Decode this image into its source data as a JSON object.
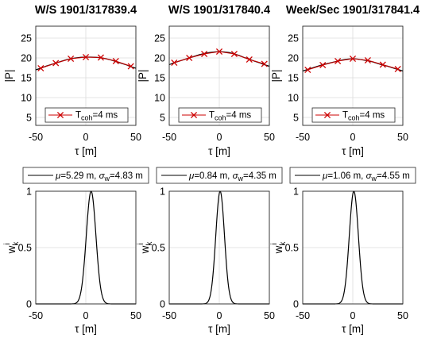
{
  "chart_data": [
    {
      "type": "line",
      "title": "W/S 1901/317839.4",
      "xlabel": "τ [m]",
      "ylabel": "|P|",
      "xlim": [
        -50,
        50
      ],
      "ylim": [
        3,
        28
      ],
      "xticks": [
        "-50",
        "0",
        "50"
      ],
      "yticks": [
        "5",
        "10",
        "15",
        "20",
        "25"
      ],
      "grid": true,
      "legend_position": "bottom-center",
      "series": [
        {
          "name_main": "T",
          "name_sub": "coh",
          "name_rest": "=4 ms",
          "color": "#cc0000",
          "marker": "x",
          "x": [
            -45,
            -30,
            -15,
            0,
            15,
            30,
            45
          ],
          "y": [
            17.4,
            18.7,
            19.8,
            20.2,
            20.1,
            19.2,
            17.9
          ]
        }
      ],
      "fit": {
        "x": [
          -50,
          -45,
          -40,
          -35,
          -30,
          -25,
          -20,
          -15,
          -10,
          -5,
          0,
          5,
          10,
          15,
          20,
          25,
          30,
          35,
          40,
          45,
          50
        ],
        "y": [
          17.0,
          17.4,
          17.9,
          18.3,
          18.7,
          19.1,
          19.5,
          19.8,
          20.0,
          20.15,
          20.2,
          20.2,
          20.15,
          20.05,
          19.8,
          19.5,
          19.1,
          18.7,
          18.3,
          17.8,
          17.4
        ]
      }
    },
    {
      "type": "line",
      "title": "W/S 1901/317840.4",
      "xlabel": "τ [m]",
      "ylabel": "|P|",
      "xlim": [
        -50,
        50
      ],
      "ylim": [
        3,
        28
      ],
      "xticks": [
        "-50",
        "0",
        "50"
      ],
      "yticks": [
        "5",
        "10",
        "15",
        "20",
        "25"
      ],
      "grid": true,
      "legend_position": "bottom-center",
      "series": [
        {
          "name_main": "T",
          "name_sub": "coh",
          "name_rest": "=4 ms",
          "color": "#cc0000",
          "marker": "x",
          "x": [
            -45,
            -30,
            -15,
            0,
            15,
            30,
            45
          ],
          "y": [
            18.8,
            20.0,
            21.0,
            21.6,
            21.0,
            19.6,
            18.5
          ]
        }
      ],
      "fit": {
        "x": [
          -50,
          -45,
          -40,
          -35,
          -30,
          -25,
          -20,
          -15,
          -10,
          -5,
          0,
          5,
          10,
          15,
          20,
          25,
          30,
          35,
          40,
          45,
          50
        ],
        "y": [
          18.3,
          18.8,
          19.2,
          19.6,
          20.0,
          20.4,
          20.8,
          21.1,
          21.35,
          21.5,
          21.6,
          21.5,
          21.35,
          21.0,
          20.6,
          20.1,
          19.7,
          19.2,
          18.8,
          18.3,
          17.9
        ]
      }
    },
    {
      "type": "line",
      "title": "Week/Sec 1901/317841.4",
      "xlabel": "τ [m]",
      "ylabel": "|P|",
      "xlim": [
        -50,
        50
      ],
      "ylim": [
        3,
        28
      ],
      "xticks": [
        "-50",
        "0",
        "50"
      ],
      "yticks": [
        "5",
        "10",
        "15",
        "20",
        "25"
      ],
      "grid": true,
      "legend_position": "bottom-center",
      "series": [
        {
          "name_main": "T",
          "name_sub": "coh",
          "name_rest": "=4 ms",
          "color": "#cc0000",
          "marker": "x",
          "x": [
            -45,
            -30,
            -15,
            0,
            15,
            30,
            45
          ],
          "y": [
            17.0,
            18.2,
            19.2,
            19.8,
            19.4,
            18.3,
            17.2
          ]
        }
      ],
      "fit": {
        "x": [
          -50,
          -45,
          -40,
          -35,
          -30,
          -25,
          -20,
          -15,
          -10,
          -5,
          0,
          5,
          10,
          15,
          20,
          25,
          30,
          35,
          40,
          45,
          50
        ],
        "y": [
          16.7,
          17.1,
          17.5,
          17.9,
          18.3,
          18.6,
          18.9,
          19.2,
          19.5,
          19.7,
          19.8,
          19.7,
          19.5,
          19.3,
          19.0,
          18.6,
          18.2,
          17.9,
          17.5,
          17.1,
          16.7
        ]
      }
    },
    {
      "type": "line",
      "title": "",
      "xlabel": "τ [m]",
      "ylabel_main": "w",
      "ylabel_sub": "k",
      "ylabel_sup": "i",
      "xlim": [
        -50,
        50
      ],
      "ylim": [
        0,
        1
      ],
      "xticks": [
        "-50",
        "0",
        "50"
      ],
      "yticks": [
        "0",
        "0.5",
        "1"
      ],
      "grid": true,
      "legend_position": "above",
      "mu": 5.29,
      "sigma": 4.83,
      "legend": {
        "mu_label": "=5.29 m, ",
        "sigma_label": "=4.83 m"
      }
    },
    {
      "type": "line",
      "title": "",
      "xlabel": "τ [m]",
      "ylabel_main": "w",
      "ylabel_sub": "k",
      "ylabel_sup": "i",
      "xlim": [
        -50,
        50
      ],
      "ylim": [
        0,
        1
      ],
      "xticks": [
        "-50",
        "0",
        "50"
      ],
      "yticks": [
        "0",
        "0.5",
        "1"
      ],
      "grid": true,
      "legend_position": "above",
      "mu": 0.84,
      "sigma": 4.35,
      "legend": {
        "mu_label": "=0.84 m, ",
        "sigma_label": "=4.35 m"
      }
    },
    {
      "type": "line",
      "title": "",
      "xlabel": "τ [m]",
      "ylabel_main": "w",
      "ylabel_sub": "k",
      "ylabel_sup": "i",
      "xlim": [
        -50,
        50
      ],
      "ylim": [
        0,
        1
      ],
      "xticks": [
        "-50",
        "0",
        "50"
      ],
      "yticks": [
        "0",
        "0.5",
        "1"
      ],
      "grid": true,
      "legend_position": "above",
      "mu": 1.06,
      "sigma": 4.55,
      "legend": {
        "mu_label": "=1.06 m, ",
        "sigma_label": "=4.55 m"
      }
    }
  ],
  "symbols": {
    "mu": "μ",
    "sigma": "σ",
    "sigma_sub": "w"
  }
}
